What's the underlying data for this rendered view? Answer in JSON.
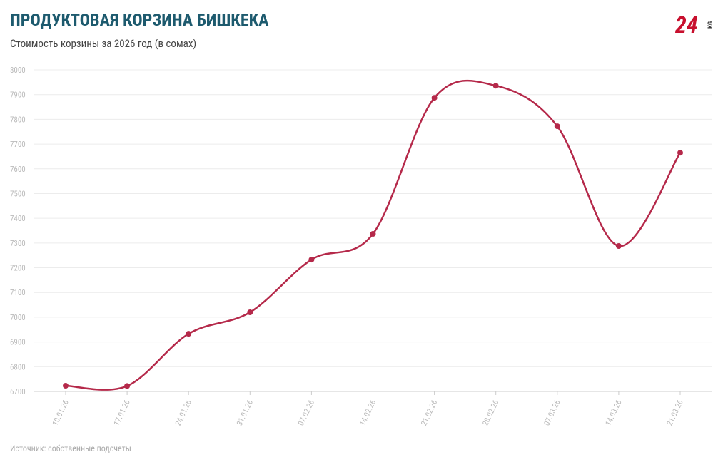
{
  "chart_data": {
    "type": "line",
    "title": "ПРОДУКТОВАЯ КОРЗИНА БИШКЕКА",
    "subtitle": "Стоимость корзины за 2026 год (в сомах)",
    "source": "Источник: собственные подсчеты",
    "logo": {
      "number": "24",
      "suffix": "KG"
    },
    "categories": [
      "10.01.26",
      "17.01.26",
      "24.01.26",
      "31.01.26",
      "07.02.26",
      "14.02.26",
      "21.02.26",
      "28.02.26",
      "07.03.26",
      "14.03.26",
      "21.03.26"
    ],
    "series": [
      {
        "name": "Стоимость корзины",
        "color": "#b5294a",
        "values": [
          6723,
          6722,
          6933,
          7020,
          7233,
          7337,
          7887,
          7936,
          7772,
          7288,
          7665
        ]
      }
    ],
    "ylim": [
      6700,
      8000
    ],
    "yticks": [
      6700,
      6800,
      6900,
      7000,
      7100,
      7200,
      7300,
      7400,
      7500,
      7600,
      7700,
      7800,
      7900,
      8000
    ],
    "grid": true,
    "smooth": true
  }
}
